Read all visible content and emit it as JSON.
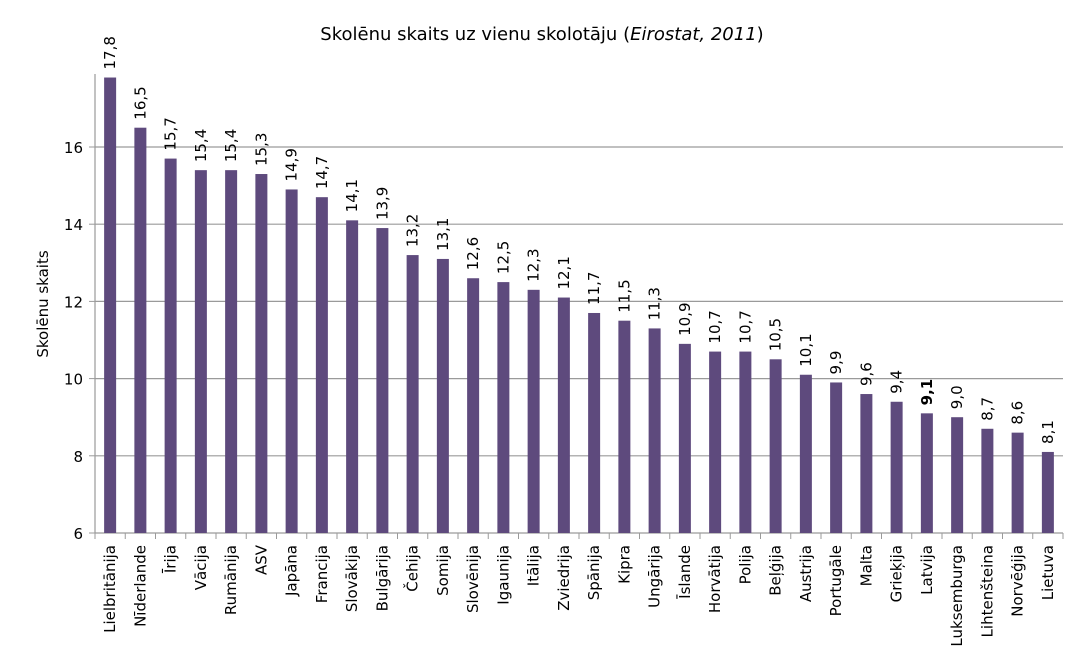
{
  "chart_data": {
    "type": "bar",
    "title": "Skolēnu skaits uz vienu skolotāju",
    "title_source": "Eirostat, 2011",
    "xlabel": "",
    "ylabel": "Skolēnu skaits",
    "ylim": [
      6,
      18
    ],
    "yticks": [
      6,
      8,
      10,
      12,
      14,
      16
    ],
    "grid": true,
    "bar_color": "#5e4a7d",
    "highlight_category": "Latvija",
    "categories": [
      "Lielbritānija",
      "Nīderlande",
      "Īrija",
      "Vācija",
      "Rumānija",
      "ASV",
      "Japāna",
      "Francija",
      "Slovākija",
      "Bulgārija",
      "Čehija",
      "Somija",
      "Slovēnija",
      "Igaunija",
      "Itālija",
      "Zviedrija",
      "Spānija",
      "Kipra",
      "Ungārija",
      "Īslande",
      "Horvātija",
      "Polija",
      "Beļģija",
      "Austrija",
      "Portugāle",
      "Malta",
      "Grieķija",
      "Latvija",
      "Luksemburga",
      "Lihtenšteina",
      "Norvēģija",
      "Lietuva"
    ],
    "values": [
      17.8,
      16.5,
      15.7,
      15.4,
      15.4,
      15.3,
      14.9,
      14.7,
      14.1,
      13.9,
      13.2,
      13.1,
      12.6,
      12.5,
      12.3,
      12.1,
      11.7,
      11.5,
      11.3,
      10.9,
      10.7,
      10.7,
      10.5,
      10.1,
      9.9,
      9.6,
      9.4,
      9.1,
      9.0,
      8.7,
      8.6,
      8.1
    ],
    "data_labels": [
      "17,8",
      "16,5",
      "15,7",
      "15,4",
      "15,4",
      "15,3",
      "14,9",
      "14,7",
      "14,1",
      "13,9",
      "13,2",
      "13,1",
      "12,6",
      "12,5",
      "12,3",
      "12,1",
      "11,7",
      "11,5",
      "11,3",
      "10,9",
      "10,7",
      "10,7",
      "10,5",
      "10,1",
      "9,9",
      "9,6",
      "9,4",
      "9,1",
      "9,0",
      "8,7",
      "8,6",
      "8,1"
    ]
  }
}
